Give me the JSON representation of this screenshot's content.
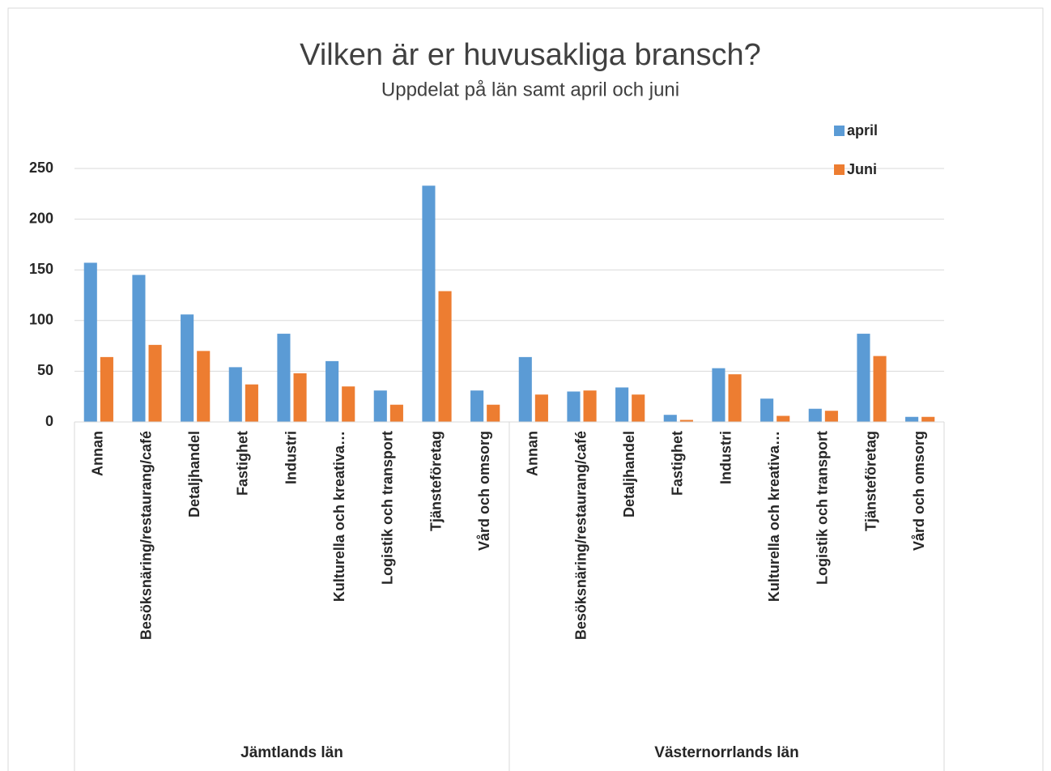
{
  "chart_data": {
    "type": "bar",
    "title": "Vilken är er huvusakliga bransch?",
    "subtitle": "Uppdelat på län samt april och juni",
    "groups": [
      "Jämtlands län",
      "Västernorrlands län"
    ],
    "categories": [
      "Annan",
      "Besöksnäring/restaurang/café",
      "Detaljhandel",
      "Fastighet",
      "Industri",
      "Kulturella och kreativa…",
      "Logistik och transport",
      "Tjänsteföretag",
      "Vård och omsorg",
      "Annan",
      "Besöksnäring/restaurang/café",
      "Detaljhandel",
      "Fastighet",
      "Industri",
      "Kulturella och kreativa…",
      "Logistik och transport",
      "Tjänsteföretag",
      "Vård och omsorg"
    ],
    "series": [
      {
        "name": "april",
        "color": "#5b9bd5",
        "values": [
          157,
          145,
          106,
          54,
          87,
          60,
          31,
          233,
          31,
          64,
          30,
          34,
          7,
          53,
          23,
          13,
          87,
          5
        ]
      },
      {
        "name": "Juni",
        "color": "#ed7d31",
        "values": [
          64,
          76,
          70,
          37,
          48,
          35,
          17,
          129,
          17,
          27,
          31,
          27,
          2,
          47,
          6,
          11,
          65,
          5
        ]
      }
    ],
    "ylim": [
      0,
      250
    ],
    "yticks": [
      0,
      50,
      100,
      150,
      200,
      250
    ],
    "grid": true,
    "legend": "top-right"
  }
}
